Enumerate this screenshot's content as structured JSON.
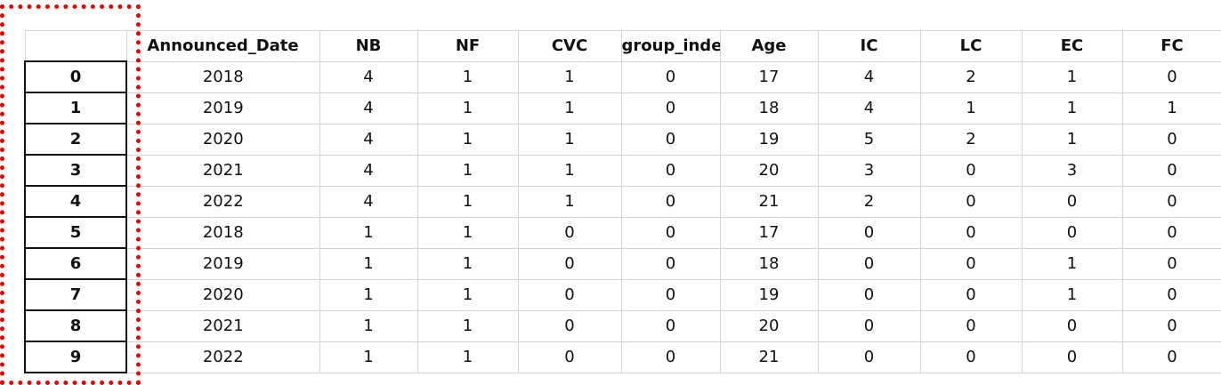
{
  "table": {
    "columns": [
      "Announced_Date",
      "NB",
      "NF",
      "CVC",
      "group_inde",
      "Age",
      "IC",
      "LC",
      "EC",
      "FC"
    ],
    "index": [
      0,
      1,
      2,
      3,
      4,
      5,
      6,
      7,
      8,
      9
    ],
    "rows": [
      [
        2018,
        4,
        1,
        1,
        0,
        17,
        4,
        2,
        1,
        0
      ],
      [
        2019,
        4,
        1,
        1,
        0,
        18,
        4,
        1,
        1,
        1
      ],
      [
        2020,
        4,
        1,
        1,
        0,
        19,
        5,
        2,
        1,
        0
      ],
      [
        2021,
        4,
        1,
        1,
        0,
        20,
        3,
        0,
        3,
        0
      ],
      [
        2022,
        4,
        1,
        1,
        0,
        21,
        2,
        0,
        0,
        0
      ],
      [
        2018,
        1,
        1,
        0,
        0,
        17,
        0,
        0,
        0,
        0
      ],
      [
        2019,
        1,
        1,
        0,
        0,
        18,
        0,
        0,
        1,
        0
      ],
      [
        2020,
        1,
        1,
        0,
        0,
        19,
        0,
        0,
        1,
        0
      ],
      [
        2021,
        1,
        1,
        0,
        0,
        20,
        0,
        0,
        0,
        0
      ],
      [
        2022,
        1,
        1,
        0,
        0,
        21,
        0,
        0,
        0,
        0
      ]
    ]
  }
}
